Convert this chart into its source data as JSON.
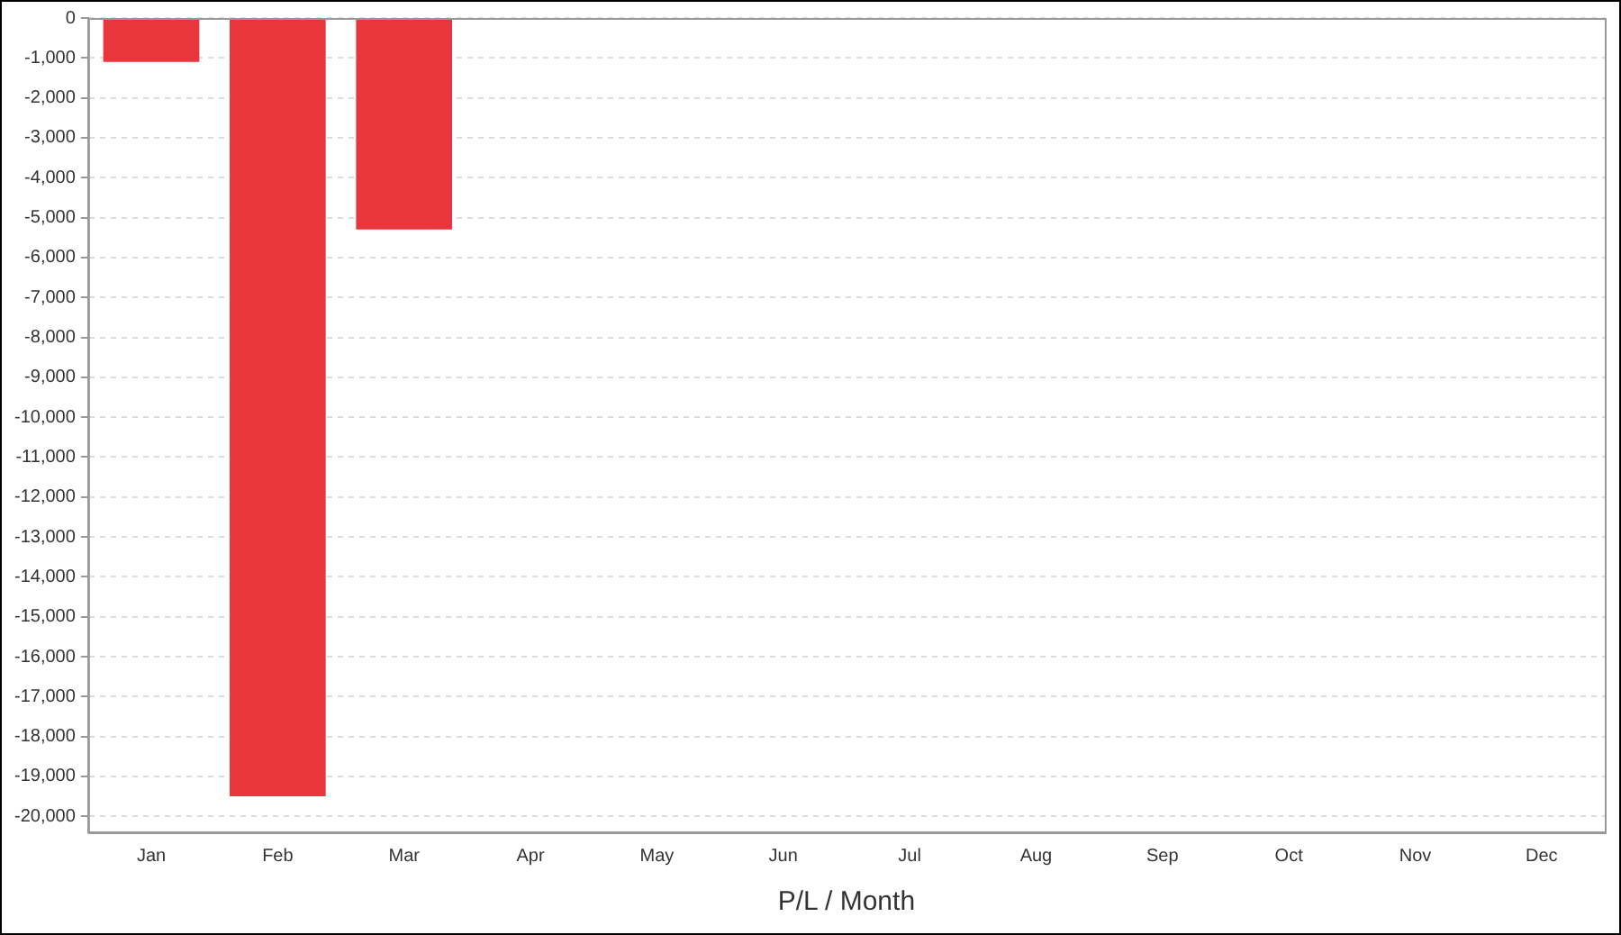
{
  "chart_data": {
    "type": "bar",
    "xlabel": "P/L / Month",
    "categories": [
      "Jan",
      "Feb",
      "Mar",
      "Apr",
      "May",
      "Jun",
      "Jul",
      "Aug",
      "Sep",
      "Oct",
      "Nov",
      "Dec"
    ],
    "values": [
      -1100,
      -19500,
      -5300,
      null,
      null,
      null,
      null,
      null,
      null,
      null,
      null,
      null
    ],
    "color": "#e8363c",
    "ylim": [
      -20400,
      0
    ],
    "yticks": [
      0,
      {
        "value": -1000,
        "label": "-1,000"
      },
      {
        "value": -2000,
        "label": "-2,000"
      },
      {
        "value": -3000,
        "label": "-3,000"
      },
      {
        "value": -4000,
        "label": "-4,000"
      },
      {
        "value": -5000,
        "label": "-5,000"
      },
      {
        "value": -6000,
        "label": "-6,000"
      },
      {
        "value": -7000,
        "label": "-7,000"
      },
      {
        "value": -8000,
        "label": "-8,000"
      },
      {
        "value": -9000,
        "label": "-9,000"
      },
      {
        "value": -10000,
        "label": "-10,000"
      },
      {
        "value": -11000,
        "label": "-11,000"
      },
      {
        "value": -12000,
        "label": "-12,000"
      },
      {
        "value": -13000,
        "label": "-13,000"
      },
      {
        "value": -14000,
        "label": "-14,000"
      },
      {
        "value": -15000,
        "label": "-15,000"
      },
      {
        "value": -16000,
        "label": "-16,000"
      },
      {
        "value": -17000,
        "label": "-17,000"
      },
      {
        "value": -18000,
        "label": "-18,000"
      },
      {
        "value": -19000,
        "label": "-19,000"
      },
      {
        "value": -20000,
        "label": "-20,000"
      }
    ],
    "grid": "y",
    "legend": false
  }
}
